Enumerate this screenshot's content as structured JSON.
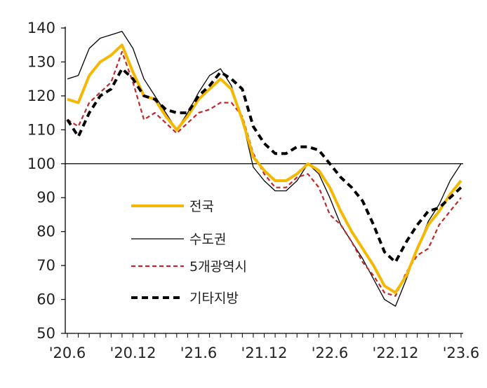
{
  "chart_data": {
    "type": "line",
    "title": "",
    "xlabel": "",
    "ylabel": "",
    "x": [
      "'20.6",
      "'20.7",
      "'20.8",
      "'20.9",
      "'20.10",
      "'20.11",
      "'20.12",
      "'21.1",
      "'21.2",
      "'21.3",
      "'21.4",
      "'21.5",
      "'21.6",
      "'21.7",
      "'21.8",
      "'21.9",
      "'21.10",
      "'21.11",
      "'21.12",
      "'22.1",
      "'22.2",
      "'22.3",
      "'22.4",
      "'22.5",
      "'22.6",
      "'22.7",
      "'22.8",
      "'22.9",
      "'22.10",
      "'22.11",
      "'22.12",
      "'23.1",
      "'23.2",
      "'23.3",
      "'23.4",
      "'23.5",
      "'23.6"
    ],
    "x_tick_labels": [
      "'20.6",
      "'20.12",
      "'21.6",
      "'21.12",
      "'22.6",
      "'22.12",
      "'23.6"
    ],
    "x_tick_index": [
      0,
      6,
      12,
      18,
      24,
      30,
      36
    ],
    "ylim": [
      50,
      140
    ],
    "y_ticks": [
      50,
      60,
      70,
      80,
      90,
      100,
      110,
      120,
      130,
      140
    ],
    "reference_line": 100,
    "legend_position": "center-left",
    "series": [
      {
        "name": "전국",
        "color": "#F5B800",
        "style": "solid-thick",
        "values": [
          119,
          118,
          126,
          130,
          132,
          135,
          127,
          120,
          119,
          114,
          110,
          114,
          119,
          122,
          125,
          122,
          113,
          102,
          98,
          95,
          95,
          97,
          100,
          98,
          93,
          86,
          80,
          75,
          70,
          64,
          62,
          67,
          75,
          82,
          86,
          91,
          95
        ]
      },
      {
        "name": "수도권",
        "color": "#000000",
        "style": "solid-thin",
        "values": [
          125,
          126,
          134,
          137,
          138,
          139,
          134,
          125,
          120,
          115,
          110,
          115,
          121,
          126,
          128,
          123,
          113,
          99,
          95,
          92,
          92,
          95,
          100,
          97,
          90,
          82,
          77,
          72,
          66,
          60,
          58,
          66,
          75,
          83,
          88,
          95,
          100
        ]
      },
      {
        "name": "5개광역시",
        "color": "#C0282B",
        "style": "dashed",
        "values": [
          113,
          111,
          118,
          121,
          124,
          133,
          124,
          113,
          115,
          112,
          109,
          112,
          115,
          116,
          118,
          118,
          114,
          103,
          97,
          93,
          93,
          96,
          97,
          93,
          85,
          82,
          77,
          71,
          67,
          62,
          61,
          68,
          73,
          75,
          82,
          86,
          90
        ]
      },
      {
        "name": "기타지방",
        "color": "#000000",
        "style": "dashed-thick",
        "values": [
          113,
          108,
          115,
          120,
          122,
          128,
          125,
          120,
          119,
          116,
          115,
          115,
          120,
          123,
          127,
          125,
          122,
          111,
          106,
          103,
          103,
          105,
          105,
          104,
          100,
          96,
          93,
          89,
          82,
          74,
          71,
          77,
          82,
          86,
          87,
          90,
          93
        ]
      }
    ]
  }
}
